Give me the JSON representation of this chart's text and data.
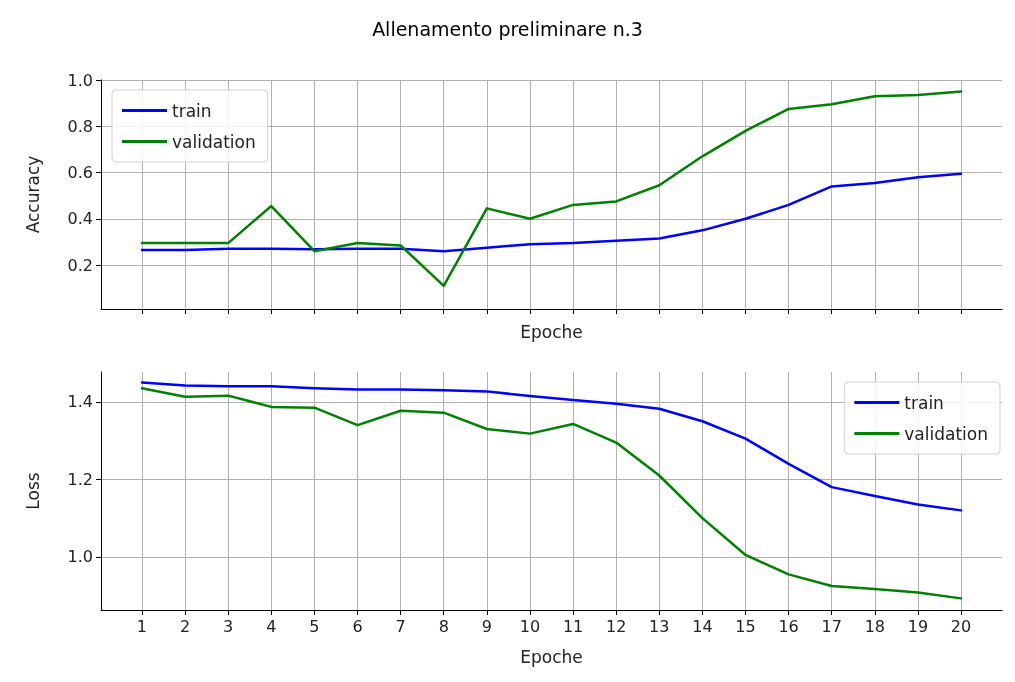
{
  "chart_data": [
    {
      "type": "line",
      "title": "Allenamento preliminare n.3",
      "xlabel": "Epoche",
      "ylabel": "Accuracy",
      "x": [
        1,
        2,
        3,
        4,
        5,
        6,
        7,
        8,
        9,
        10,
        11,
        12,
        13,
        14,
        15,
        16,
        17,
        18,
        19,
        20
      ],
      "series": [
        {
          "name": "train",
          "color": "#0000ff",
          "values": [
            0.265,
            0.265,
            0.27,
            0.27,
            0.268,
            0.27,
            0.27,
            0.26,
            0.275,
            0.29,
            0.295,
            0.305,
            0.315,
            0.35,
            0.4,
            0.46,
            0.54,
            0.555,
            0.58,
            0.595
          ]
        },
        {
          "name": "validation",
          "color": "#008000",
          "values": [
            0.295,
            0.295,
            0.295,
            0.455,
            0.26,
            0.295,
            0.285,
            0.11,
            0.445,
            0.4,
            0.46,
            0.475,
            0.545,
            0.67,
            0.78,
            0.875,
            0.895,
            0.93,
            0.935,
            0.95
          ]
        }
      ],
      "xlim": [
        0.05,
        20.95
      ],
      "xticks": [
        {
          "value": 1,
          "label": null
        },
        {
          "value": 2,
          "label": null
        },
        {
          "value": 3,
          "label": null
        },
        {
          "value": 4,
          "label": null
        },
        {
          "value": 5,
          "label": null
        },
        {
          "value": 6,
          "label": null
        },
        {
          "value": 7,
          "label": null
        },
        {
          "value": 8,
          "label": null
        },
        {
          "value": 9,
          "label": null
        },
        {
          "value": 10,
          "label": null
        },
        {
          "value": 11,
          "label": null
        },
        {
          "value": 12,
          "label": null
        },
        {
          "value": 13,
          "label": null
        },
        {
          "value": 14,
          "label": null
        },
        {
          "value": 15,
          "label": null
        },
        {
          "value": 16,
          "label": null
        },
        {
          "value": 17,
          "label": null
        },
        {
          "value": 18,
          "label": null
        },
        {
          "value": 19,
          "label": null
        },
        {
          "value": 20,
          "label": null
        }
      ],
      "ylim": [
        0.01,
        1
      ],
      "yticks": [
        0.2,
        0.4,
        0.6,
        0.8,
        {
          "value": 1,
          "label": "1.0"
        }
      ],
      "tick_labels": "y",
      "grid": true,
      "legend": "top left",
      "marker": "none",
      "line_style": "solid"
    },
    {
      "type": "line",
      "xlabel": "Epoche",
      "ylabel": "Loss",
      "x": [
        1,
        2,
        3,
        4,
        5,
        6,
        7,
        8,
        9,
        10,
        11,
        12,
        13,
        14,
        15,
        16,
        17,
        18,
        19,
        20
      ],
      "series": [
        {
          "name": "train",
          "color": "#0000ff",
          "values": [
            1.45,
            1.442,
            1.44,
            1.44,
            1.435,
            1.432,
            1.432,
            1.43,
            1.427,
            1.415,
            1.405,
            1.395,
            1.382,
            1.35,
            1.305,
            1.24,
            1.18,
            1.157,
            1.135,
            1.12
          ]
        },
        {
          "name": "validation",
          "color": "#008000",
          "values": [
            1.435,
            1.413,
            1.416,
            1.387,
            1.385,
            1.34,
            1.377,
            1.372,
            1.33,
            1.318,
            1.343,
            1.295,
            1.21,
            1.1,
            1.005,
            0.955,
            0.925,
            0.917,
            0.908,
            0.893
          ]
        }
      ],
      "xlim": [
        0.05,
        20.95
      ],
      "xticks": [
        1,
        2,
        3,
        4,
        5,
        6,
        7,
        8,
        9,
        10,
        11,
        12,
        13,
        14,
        15,
        16,
        17,
        18,
        19,
        20
      ],
      "ylim": [
        0.863,
        1.477
      ],
      "yticks": [
        {
          "value": 1,
          "label": "1.0"
        },
        1.2,
        1.4
      ],
      "grid": true,
      "legend": "top right",
      "marker": "none",
      "line_style": "solid"
    }
  ]
}
